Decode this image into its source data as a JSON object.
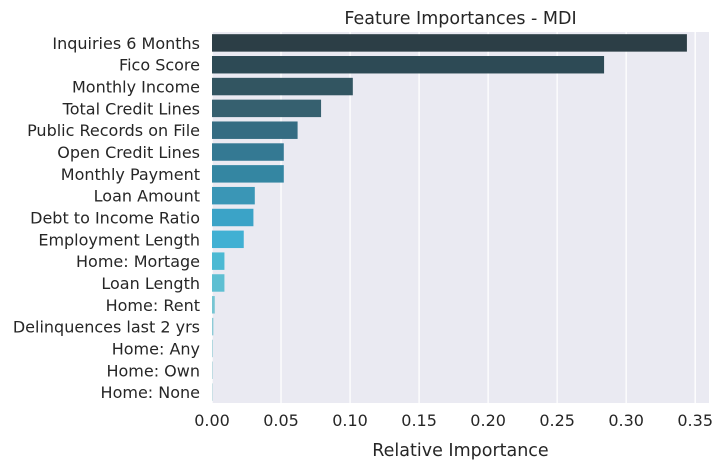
{
  "chart_data": {
    "type": "bar",
    "orientation": "horizontal",
    "title": "Feature Importances - MDI",
    "xlabel": "Relative Importance",
    "ylabel": "",
    "xlim": [
      0,
      0.36
    ],
    "xticks": [
      "0.00",
      "0.05",
      "0.10",
      "0.15",
      "0.20",
      "0.25",
      "0.30",
      "0.35"
    ],
    "xtick_values": [
      0,
      0.05,
      0.1,
      0.15,
      0.2,
      0.25,
      0.3,
      0.35
    ],
    "grid": true,
    "background": "#eaeaf2",
    "gridline_color": "#ffffff",
    "categories": [
      "Inquiries 6 Months",
      "Fico Score",
      "Monthly Income",
      "Total Credit Lines",
      "Public Records on File",
      "Open Credit Lines",
      "Monthly Payment",
      "Loan Amount",
      "Debt to Income Ratio",
      "Employment Length",
      "Home: Mortage",
      "Loan Length",
      "Home: Rent",
      "Delinquences last 2 yrs",
      "Home: Any",
      "Home: Own",
      "Home: None"
    ],
    "values": [
      0.344,
      0.284,
      0.102,
      0.079,
      0.062,
      0.052,
      0.052,
      0.031,
      0.03,
      0.023,
      0.009,
      0.009,
      0.002,
      0.001,
      0.0003,
      0.0002,
      0.0001
    ],
    "colors": [
      "#2c3e46",
      "#2d4a55",
      "#325561",
      "#36606f",
      "#356c82",
      "#347993",
      "#3486a2",
      "#3a96b6",
      "#3ba3c7",
      "#41b0d3",
      "#4cb9d3",
      "#5ebfd2",
      "#76c5d3",
      "#8dcbd7",
      "#a2d2da",
      "#b4d8de",
      "#c4dde2"
    ]
  }
}
